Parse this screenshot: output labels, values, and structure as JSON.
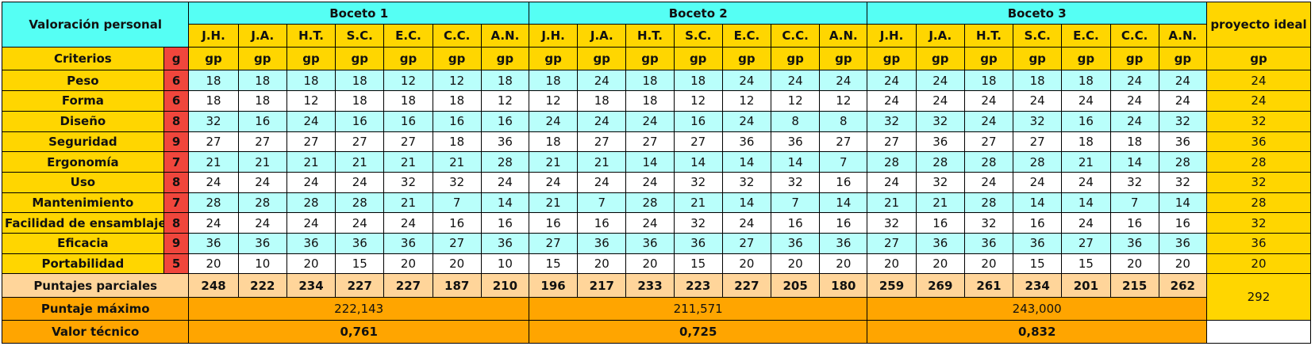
{
  "header": {
    "title": "Valoración personal",
    "bocetos": [
      "Boceto 1",
      "Boceto 2",
      "Boceto  3"
    ],
    "ideal_label": "proyecto ideal",
    "evaluators": [
      "J.H.",
      "J.A.",
      "H.T.",
      "S.C.",
      "E.C.",
      "C.C.",
      "A.N."
    ],
    "criterios_label": "Criterios",
    "g_label": "g",
    "gp_label": "gp"
  },
  "criteria": [
    {
      "name": "Peso",
      "g": "6",
      "b1": [
        "18",
        "18",
        "18",
        "18",
        "12",
        "12",
        "18"
      ],
      "b2": [
        "18",
        "24",
        "18",
        "18",
        "24",
        "24",
        "24"
      ],
      "b3": [
        "24",
        "24",
        "18",
        "18",
        "18",
        "24",
        "24"
      ],
      "ideal": "24"
    },
    {
      "name": "Forma",
      "g": "6",
      "b1": [
        "18",
        "18",
        "12",
        "18",
        "18",
        "18",
        "12"
      ],
      "b2": [
        "12",
        "18",
        "18",
        "12",
        "12",
        "12",
        "12"
      ],
      "b3": [
        "24",
        "24",
        "24",
        "24",
        "24",
        "24",
        "24"
      ],
      "ideal": "24"
    },
    {
      "name": "Diseño",
      "g": "8",
      "b1": [
        "32",
        "16",
        "24",
        "16",
        "16",
        "16",
        "16"
      ],
      "b2": [
        "24",
        "24",
        "24",
        "16",
        "24",
        "8",
        "8"
      ],
      "b3": [
        "32",
        "32",
        "24",
        "32",
        "16",
        "24",
        "32"
      ],
      "ideal": "32"
    },
    {
      "name": "Seguridad",
      "g": "9",
      "b1": [
        "27",
        "27",
        "27",
        "27",
        "27",
        "18",
        "36"
      ],
      "b2": [
        "18",
        "27",
        "27",
        "27",
        "36",
        "36",
        "27"
      ],
      "b3": [
        "27",
        "36",
        "27",
        "27",
        "18",
        "18",
        "36"
      ],
      "ideal": "36"
    },
    {
      "name": "Ergonomía",
      "g": "7",
      "b1": [
        "21",
        "21",
        "21",
        "21",
        "21",
        "21",
        "28"
      ],
      "b2": [
        "21",
        "21",
        "14",
        "14",
        "14",
        "14",
        "7"
      ],
      "b3": [
        "28",
        "28",
        "28",
        "28",
        "21",
        "14",
        "28"
      ],
      "ideal": "28"
    },
    {
      "name": "Uso",
      "g": "8",
      "b1": [
        "24",
        "24",
        "24",
        "24",
        "32",
        "32",
        "24"
      ],
      "b2": [
        "24",
        "24",
        "24",
        "32",
        "32",
        "32",
        "16"
      ],
      "b3": [
        "24",
        "32",
        "24",
        "24",
        "24",
        "32",
        "32"
      ],
      "ideal": "32"
    },
    {
      "name": "Mantenimiento",
      "g": "7",
      "b1": [
        "28",
        "28",
        "28",
        "28",
        "21",
        "7",
        "14"
      ],
      "b2": [
        "21",
        "7",
        "28",
        "21",
        "14",
        "7",
        "14"
      ],
      "b3": [
        "21",
        "21",
        "28",
        "14",
        "14",
        "7",
        "14"
      ],
      "ideal": "28"
    },
    {
      "name": "Facilidad de ensamblaje",
      "g": "8",
      "b1": [
        "24",
        "24",
        "24",
        "24",
        "24",
        "16",
        "16"
      ],
      "b2": [
        "16",
        "16",
        "24",
        "32",
        "24",
        "16",
        "16"
      ],
      "b3": [
        "32",
        "16",
        "32",
        "16",
        "24",
        "16",
        "16"
      ],
      "ideal": "32"
    },
    {
      "name": "Eficacia",
      "g": "9",
      "b1": [
        "36",
        "36",
        "36",
        "36",
        "36",
        "27",
        "36"
      ],
      "b2": [
        "27",
        "36",
        "36",
        "36",
        "27",
        "36",
        "36"
      ],
      "b3": [
        "27",
        "36",
        "36",
        "36",
        "27",
        "36",
        "36"
      ],
      "ideal": "36"
    },
    {
      "name": "Portabilidad",
      "g": "5",
      "b1": [
        "20",
        "10",
        "20",
        "15",
        "20",
        "20",
        "10"
      ],
      "b2": [
        "15",
        "20",
        "20",
        "15",
        "20",
        "20",
        "20"
      ],
      "b3": [
        "20",
        "20",
        "20",
        "15",
        "15",
        "20",
        "20"
      ],
      "ideal": "20"
    }
  ],
  "parciales": {
    "label": "Puntajes parciales",
    "b1": [
      "248",
      "222",
      "234",
      "227",
      "227",
      "187",
      "210"
    ],
    "b2": [
      "196",
      "217",
      "233",
      "223",
      "227",
      "205",
      "180"
    ],
    "b3": [
      "259",
      "269",
      "261",
      "234",
      "201",
      "215",
      "262"
    ],
    "ideal": "292"
  },
  "maximo": {
    "label": "Puntaje máximo",
    "values": [
      "222,143",
      "211,571",
      "243,000"
    ]
  },
  "tecnico": {
    "label": "Valor técnico",
    "values": [
      "0,761",
      "0,725",
      "0,832"
    ]
  },
  "colors": {
    "yellow": "#FFD600",
    "cyan": "#55FFF4",
    "light_cyan": "#B9FFFB",
    "red": "#F0463C",
    "peach": "#FFD59A",
    "orange": "#FFA500"
  }
}
